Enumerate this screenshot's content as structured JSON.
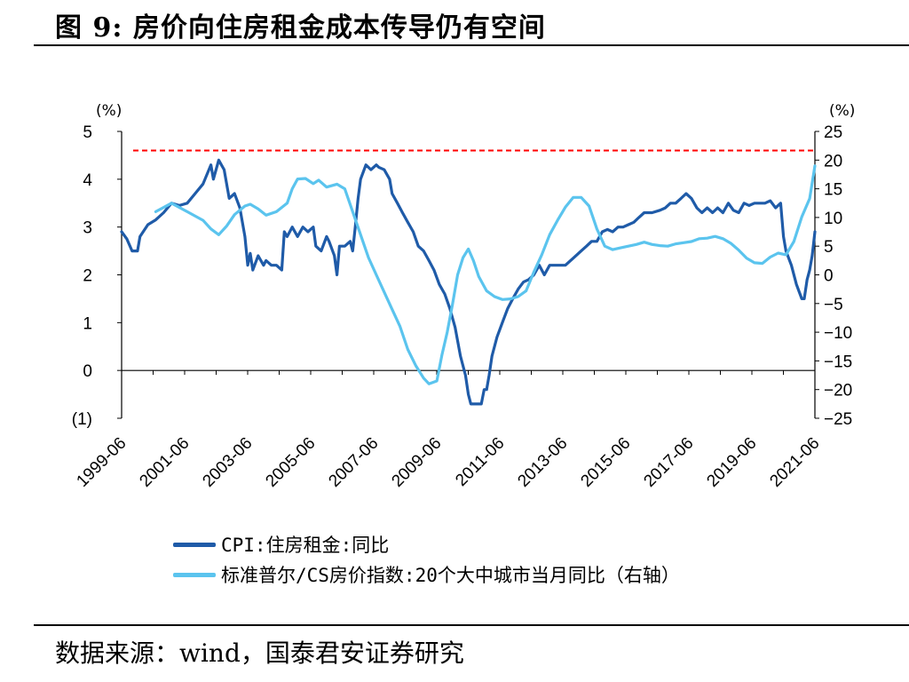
{
  "title": "图  9:  房价向住房租金成本传导仍有空间",
  "source": "数据来源：wind，国泰君安证券研究",
  "colors": {
    "cpi": "#1f5ba8",
    "cs": "#5bc4ee",
    "ref": "#ff0000",
    "neg_label": "#ff0000"
  },
  "chart_data": {
    "type": "line",
    "yunit_left": "(%)",
    "yunit_right": "(%)",
    "ylim_left": [
      -1,
      5
    ],
    "ylim_right": [
      -25,
      25
    ],
    "left_ticks": [
      {
        "v": 5,
        "label": "5"
      },
      {
        "v": 4,
        "label": "4"
      },
      {
        "v": 3,
        "label": "3"
      },
      {
        "v": 2,
        "label": "2"
      },
      {
        "v": 1,
        "label": "1"
      },
      {
        "v": 0,
        "label": "0"
      },
      {
        "v": -1,
        "label": "(1)",
        "red": true
      }
    ],
    "right_ticks": [
      {
        "v": 25,
        "label": "25"
      },
      {
        "v": 20,
        "label": "20"
      },
      {
        "v": 15,
        "label": "15"
      },
      {
        "v": 10,
        "label": "10"
      },
      {
        "v": 5,
        "label": "5"
      },
      {
        "v": 0,
        "label": "0"
      },
      {
        "v": -5,
        "label": "−5"
      },
      {
        "v": -10,
        "label": "−10"
      },
      {
        "v": -15,
        "label": "−15"
      },
      {
        "v": -20,
        "label": "−20"
      },
      {
        "v": -25,
        "label": "−25"
      }
    ],
    "xlim": [
      1999.417,
      2021.417
    ],
    "x_ticks": [
      {
        "v": 1999.417,
        "label": "1999-06"
      },
      {
        "v": 2001.417,
        "label": "2001-06"
      },
      {
        "v": 2003.417,
        "label": "2003-06"
      },
      {
        "v": 2005.417,
        "label": "2005-06"
      },
      {
        "v": 2007.417,
        "label": "2007-06"
      },
      {
        "v": 2009.417,
        "label": "2009-06"
      },
      {
        "v": 2011.417,
        "label": "2011-06"
      },
      {
        "v": 2013.417,
        "label": "2013-06"
      },
      {
        "v": 2015.417,
        "label": "2015-06"
      },
      {
        "v": 2017.417,
        "label": "2017-06"
      },
      {
        "v": 2019.417,
        "label": "2019-06"
      },
      {
        "v": 2021.417,
        "label": "2021-06"
      }
    ],
    "reference_line": {
      "axis": "left",
      "y": 4.6,
      "style": "dashed"
    },
    "series": [
      {
        "name": "CPI:住房租金:同比",
        "axis": "left",
        "points": [
          [
            1999.417,
            2.9
          ],
          [
            1999.583,
            2.75
          ],
          [
            1999.75,
            2.5
          ],
          [
            1999.92,
            2.5
          ],
          [
            2000.0,
            2.8
          ],
          [
            2000.25,
            3.05
          ],
          [
            2000.5,
            3.15
          ],
          [
            2000.75,
            3.3
          ],
          [
            2001.0,
            3.5
          ],
          [
            2001.25,
            3.45
          ],
          [
            2001.5,
            3.5
          ],
          [
            2001.75,
            3.7
          ],
          [
            2002.0,
            3.9
          ],
          [
            2002.25,
            4.3
          ],
          [
            2002.33,
            4.0
          ],
          [
            2002.5,
            4.4
          ],
          [
            2002.67,
            4.2
          ],
          [
            2002.83,
            3.6
          ],
          [
            2003.0,
            3.7
          ],
          [
            2003.17,
            3.4
          ],
          [
            2003.33,
            2.8
          ],
          [
            2003.42,
            2.2
          ],
          [
            2003.5,
            2.45
          ],
          [
            2003.58,
            2.1
          ],
          [
            2003.75,
            2.4
          ],
          [
            2003.92,
            2.2
          ],
          [
            2004.0,
            2.3
          ],
          [
            2004.17,
            2.2
          ],
          [
            2004.33,
            2.2
          ],
          [
            2004.5,
            2.1
          ],
          [
            2004.58,
            2.9
          ],
          [
            2004.67,
            2.8
          ],
          [
            2004.83,
            3.0
          ],
          [
            2005.0,
            2.8
          ],
          [
            2005.17,
            3.0
          ],
          [
            2005.33,
            2.9
          ],
          [
            2005.5,
            3.0
          ],
          [
            2005.58,
            2.6
          ],
          [
            2005.75,
            2.5
          ],
          [
            2005.92,
            2.8
          ],
          [
            2006.0,
            2.7
          ],
          [
            2006.17,
            2.4
          ],
          [
            2006.25,
            2.0
          ],
          [
            2006.33,
            2.6
          ],
          [
            2006.5,
            2.6
          ],
          [
            2006.67,
            2.7
          ],
          [
            2006.75,
            2.5
          ],
          [
            2006.83,
            3.0
          ],
          [
            2006.92,
            3.6
          ],
          [
            2007.0,
            4.0
          ],
          [
            2007.17,
            4.3
          ],
          [
            2007.33,
            4.2
          ],
          [
            2007.5,
            4.3
          ],
          [
            2007.58,
            4.25
          ],
          [
            2007.75,
            4.2
          ],
          [
            2007.92,
            4.0
          ],
          [
            2008.0,
            3.7
          ],
          [
            2008.17,
            3.5
          ],
          [
            2008.33,
            3.3
          ],
          [
            2008.5,
            3.1
          ],
          [
            2008.67,
            2.9
          ],
          [
            2008.83,
            2.6
          ],
          [
            2009.0,
            2.5
          ],
          [
            2009.17,
            2.3
          ],
          [
            2009.33,
            2.1
          ],
          [
            2009.5,
            1.8
          ],
          [
            2009.67,
            1.6
          ],
          [
            2009.83,
            1.3
          ],
          [
            2010.0,
            0.9
          ],
          [
            2010.17,
            0.3
          ],
          [
            2010.33,
            -0.1
          ],
          [
            2010.42,
            -0.5
          ],
          [
            2010.5,
            -0.7
          ],
          [
            2010.67,
            -0.7
          ],
          [
            2010.83,
            -0.7
          ],
          [
            2010.92,
            -0.4
          ],
          [
            2011.0,
            -0.4
          ],
          [
            2011.08,
            -0.1
          ],
          [
            2011.17,
            0.3
          ],
          [
            2011.33,
            0.7
          ],
          [
            2011.5,
            1.0
          ],
          [
            2011.67,
            1.3
          ],
          [
            2011.83,
            1.5
          ],
          [
            2012.0,
            1.7
          ],
          [
            2012.17,
            1.85
          ],
          [
            2012.33,
            1.9
          ],
          [
            2012.5,
            2.0
          ],
          [
            2012.67,
            2.2
          ],
          [
            2012.83,
            2.0
          ],
          [
            2013.0,
            2.2
          ],
          [
            2013.25,
            2.2
          ],
          [
            2013.5,
            2.2
          ],
          [
            2013.75,
            2.35
          ],
          [
            2014.0,
            2.5
          ],
          [
            2014.17,
            2.6
          ],
          [
            2014.33,
            2.7
          ],
          [
            2014.5,
            2.7
          ],
          [
            2014.67,
            2.9
          ],
          [
            2014.83,
            2.95
          ],
          [
            2015.0,
            2.9
          ],
          [
            2015.17,
            3.0
          ],
          [
            2015.33,
            3.0
          ],
          [
            2015.5,
            3.05
          ],
          [
            2015.67,
            3.1
          ],
          [
            2015.83,
            3.2
          ],
          [
            2016.0,
            3.3
          ],
          [
            2016.25,
            3.3
          ],
          [
            2016.5,
            3.35
          ],
          [
            2016.67,
            3.4
          ],
          [
            2016.83,
            3.5
          ],
          [
            2017.0,
            3.5
          ],
          [
            2017.17,
            3.6
          ],
          [
            2017.33,
            3.7
          ],
          [
            2017.5,
            3.6
          ],
          [
            2017.67,
            3.4
          ],
          [
            2017.83,
            3.3
          ],
          [
            2018.0,
            3.4
          ],
          [
            2018.17,
            3.3
          ],
          [
            2018.33,
            3.4
          ],
          [
            2018.5,
            3.3
          ],
          [
            2018.67,
            3.5
          ],
          [
            2018.83,
            3.35
          ],
          [
            2019.0,
            3.3
          ],
          [
            2019.17,
            3.5
          ],
          [
            2019.33,
            3.45
          ],
          [
            2019.5,
            3.5
          ],
          [
            2019.67,
            3.5
          ],
          [
            2019.83,
            3.5
          ],
          [
            2020.0,
            3.55
          ],
          [
            2020.17,
            3.4
          ],
          [
            2020.33,
            3.5
          ],
          [
            2020.42,
            2.8
          ],
          [
            2020.5,
            2.5
          ],
          [
            2020.67,
            2.2
          ],
          [
            2020.83,
            1.8
          ],
          [
            2021.0,
            1.5
          ],
          [
            2021.08,
            1.5
          ],
          [
            2021.17,
            1.9
          ],
          [
            2021.25,
            2.1
          ],
          [
            2021.33,
            2.4
          ],
          [
            2021.417,
            2.9
          ]
        ]
      },
      {
        "name": "标准普尔/CS房价指数:20个大中城市当月同比（右轴）",
        "axis": "right",
        "points": [
          [
            2000.5,
            11
          ],
          [
            2001.0,
            12.5
          ],
          [
            2001.5,
            11
          ],
          [
            2002.0,
            9.5
          ],
          [
            2002.25,
            8
          ],
          [
            2002.5,
            7
          ],
          [
            2002.75,
            8.5
          ],
          [
            2003.0,
            10.5
          ],
          [
            2003.33,
            12
          ],
          [
            2003.5,
            12.3
          ],
          [
            2003.75,
            11.5
          ],
          [
            2004.0,
            10.4
          ],
          [
            2004.33,
            11
          ],
          [
            2004.67,
            12.5
          ],
          [
            2004.83,
            15
          ],
          [
            2005.0,
            16.7
          ],
          [
            2005.25,
            16.8
          ],
          [
            2005.5,
            15.9
          ],
          [
            2005.67,
            16.5
          ],
          [
            2005.92,
            15.3
          ],
          [
            2006.25,
            15.8
          ],
          [
            2006.5,
            15
          ],
          [
            2006.75,
            11
          ],
          [
            2007.0,
            7
          ],
          [
            2007.25,
            3
          ],
          [
            2007.5,
            0
          ],
          [
            2007.75,
            -3
          ],
          [
            2008.0,
            -6
          ],
          [
            2008.25,
            -9
          ],
          [
            2008.5,
            -13
          ],
          [
            2008.75,
            -15.8
          ],
          [
            2009.0,
            -18
          ],
          [
            2009.17,
            -19
          ],
          [
            2009.42,
            -18.5
          ],
          [
            2009.58,
            -14
          ],
          [
            2009.75,
            -10
          ],
          [
            2009.92,
            -5
          ],
          [
            2010.08,
            0
          ],
          [
            2010.25,
            3
          ],
          [
            2010.42,
            4.5
          ],
          [
            2010.58,
            2.5
          ],
          [
            2010.75,
            -0.3
          ],
          [
            2011.0,
            -2.8
          ],
          [
            2011.25,
            -3.8
          ],
          [
            2011.5,
            -4.3
          ],
          [
            2011.75,
            -4.2
          ],
          [
            2012.0,
            -3.8
          ],
          [
            2012.25,
            -2.8
          ],
          [
            2012.5,
            0.5
          ],
          [
            2012.75,
            3.5
          ],
          [
            2013.0,
            7
          ],
          [
            2013.25,
            9.5
          ],
          [
            2013.5,
            11.8
          ],
          [
            2013.75,
            13.5
          ],
          [
            2014.0,
            13.5
          ],
          [
            2014.25,
            12
          ],
          [
            2014.5,
            8
          ],
          [
            2014.75,
            5
          ],
          [
            2015.0,
            4.4
          ],
          [
            2015.25,
            4.7
          ],
          [
            2015.5,
            5
          ],
          [
            2015.75,
            5.3
          ],
          [
            2016.0,
            5.7
          ],
          [
            2016.25,
            5.3
          ],
          [
            2016.5,
            5.1
          ],
          [
            2016.75,
            5
          ],
          [
            2017.0,
            5.4
          ],
          [
            2017.25,
            5.6
          ],
          [
            2017.5,
            5.8
          ],
          [
            2017.75,
            6.3
          ],
          [
            2018.0,
            6.4
          ],
          [
            2018.25,
            6.7
          ],
          [
            2018.5,
            6.3
          ],
          [
            2018.75,
            5.5
          ],
          [
            2019.0,
            4.3
          ],
          [
            2019.25,
            2.9
          ],
          [
            2019.5,
            2.1
          ],
          [
            2019.75,
            2.0
          ],
          [
            2020.0,
            3.1
          ],
          [
            2020.25,
            3.8
          ],
          [
            2020.5,
            3.5
          ],
          [
            2020.75,
            5.8
          ],
          [
            2021.0,
            10.1
          ],
          [
            2021.25,
            13.3
          ],
          [
            2021.417,
            19
          ]
        ]
      }
    ],
    "legend": [
      {
        "label": "CPI:住房租金:同比",
        "color": "#1f5ba8"
      },
      {
        "label": "标准普尔/CS房价指数:20个大中城市当月同比（右轴）",
        "color": "#5bc4ee"
      }
    ]
  }
}
